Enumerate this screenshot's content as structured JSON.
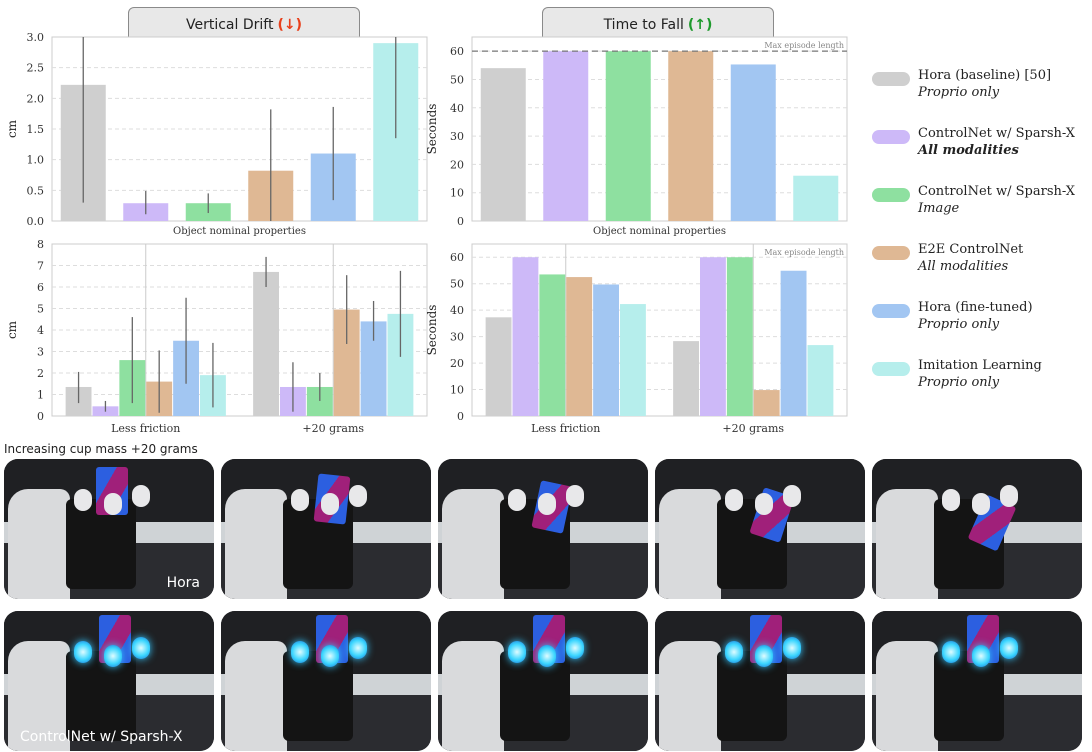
{
  "panels": {
    "vertical_drift": {
      "title": "Vertical Drift",
      "arrow": "(↓)"
    },
    "time_to_fall": {
      "title": "Time to Fall",
      "arrow": "(↑)"
    }
  },
  "legend": {
    "items": [
      {
        "label": "Hora (baseline) [50]",
        "sub": "Proprio only",
        "color": "#cfcfcf",
        "bold": false
      },
      {
        "label": "ControlNet w/ Sparsh-X",
        "sub": "All modalities",
        "color": "#cdb9f8",
        "bold": true
      },
      {
        "label": "ControlNet w/ Sparsh-X",
        "sub": "Image",
        "color": "#8ee0a0",
        "bold": false
      },
      {
        "label": "E2E ControlNet",
        "sub": "All modalities",
        "color": "#dfb894",
        "bold": false
      },
      {
        "label": "Hora (fine-tuned)",
        "sub": "Proprio only",
        "color": "#a2c6f2",
        "bold": false
      },
      {
        "label": "Imitation Learning",
        "sub": "Proprio only",
        "color": "#b6eeec",
        "bold": false
      }
    ]
  },
  "chart_data": [
    {
      "id": "vd_top",
      "type": "bar",
      "title": "Vertical Drift (↓)",
      "xlabel": "Object nominal properties",
      "ylabel": "cm",
      "ylim": [
        0,
        3.0
      ],
      "yticks": [
        "0.0",
        "0.5",
        "1.0",
        "1.5",
        "2.0",
        "2.5",
        "3.0"
      ],
      "grid": true,
      "categories": [
        "Object nominal properties"
      ],
      "series": [
        {
          "name": "Hora (baseline) [50]",
          "values": [
            2.22
          ],
          "err_low": [
            0.3
          ],
          "err_high": [
            3.0
          ]
        },
        {
          "name": "ControlNet w/ Sparsh-X (All modalities)",
          "values": [
            0.29
          ],
          "err_low": [
            0.11
          ],
          "err_high": [
            0.49
          ]
        },
        {
          "name": "ControlNet w/ Sparsh-X (Image)",
          "values": [
            0.29
          ],
          "err_low": [
            0.13
          ],
          "err_high": [
            0.45
          ]
        },
        {
          "name": "E2E ControlNet (All modalities)",
          "values": [
            0.82
          ],
          "err_low": [
            0.0
          ],
          "err_high": [
            1.82
          ]
        },
        {
          "name": "Hora (fine-tuned)",
          "values": [
            1.1
          ],
          "err_low": [
            0.34
          ],
          "err_high": [
            1.86
          ]
        },
        {
          "name": "Imitation Learning",
          "values": [
            2.9
          ],
          "err_low": [
            1.35
          ],
          "err_high": [
            3.0
          ]
        }
      ]
    },
    {
      "id": "ttf_top",
      "type": "bar",
      "title": "Time to Fall (↑)",
      "xlabel": "Object nominal properties",
      "ylabel": "Seconds",
      "ylim": [
        0,
        65
      ],
      "yticks": [
        "0",
        "10",
        "20",
        "30",
        "40",
        "50",
        "60"
      ],
      "grid": true,
      "annotation": "Max episode length",
      "reference_line": 60,
      "categories": [
        "Object nominal properties"
      ],
      "series": [
        {
          "name": "Hora (baseline) [50]",
          "values": [
            54
          ]
        },
        {
          "name": "ControlNet w/ Sparsh-X (All modalities)",
          "values": [
            60
          ]
        },
        {
          "name": "ControlNet w/ Sparsh-X (Image)",
          "values": [
            60
          ]
        },
        {
          "name": "E2E ControlNet (All modalities)",
          "values": [
            60
          ]
        },
        {
          "name": "Hora (fine-tuned)",
          "values": [
            55.3
          ]
        },
        {
          "name": "Imitation Learning",
          "values": [
            16
          ]
        }
      ]
    },
    {
      "id": "vd_bottom",
      "type": "bar",
      "title": "",
      "xlabel": "",
      "ylabel": "cm",
      "ylim": [
        0,
        8
      ],
      "yticks": [
        "0",
        "1",
        "2",
        "3",
        "4",
        "5",
        "6",
        "7",
        "8"
      ],
      "grid": true,
      "categories": [
        "Less friction",
        "+20 grams"
      ],
      "series": [
        {
          "name": "Hora (baseline) [50]",
          "values": [
            1.35,
            6.7
          ],
          "err_low": [
            0.6,
            6.0
          ],
          "err_high": [
            2.05,
            7.4
          ]
        },
        {
          "name": "ControlNet w/ Sparsh-X (All modalities)",
          "values": [
            0.45,
            1.35
          ],
          "err_low": [
            0.2,
            0.2
          ],
          "err_high": [
            0.7,
            2.5
          ]
        },
        {
          "name": "ControlNet w/ Sparsh-X (Image)",
          "values": [
            2.6,
            1.35
          ],
          "err_low": [
            0.6,
            0.7
          ],
          "err_high": [
            4.6,
            2.0
          ]
        },
        {
          "name": "E2E ControlNet (All modalities)",
          "values": [
            1.6,
            4.95
          ],
          "err_low": [
            0.15,
            3.35
          ],
          "err_high": [
            3.05,
            6.55
          ]
        },
        {
          "name": "Hora (fine-tuned)",
          "values": [
            3.5,
            4.4
          ],
          "err_low": [
            1.5,
            3.5
          ],
          "err_high": [
            5.5,
            5.35
          ]
        },
        {
          "name": "Imitation Learning",
          "values": [
            1.9,
            4.75
          ],
          "err_low": [
            0.4,
            2.75
          ],
          "err_high": [
            3.4,
            6.75
          ]
        }
      ]
    },
    {
      "id": "ttf_bottom",
      "type": "bar",
      "title": "",
      "xlabel": "",
      "ylabel": "Seconds",
      "ylim": [
        0,
        65
      ],
      "yticks": [
        "0",
        "10",
        "20",
        "30",
        "40",
        "50",
        "60"
      ],
      "grid": true,
      "annotation": "Max episode length",
      "categories": [
        "Less friction",
        "+20 grams"
      ],
      "series": [
        {
          "name": "Hora (baseline) [50]",
          "values": [
            37.3,
            28.3
          ]
        },
        {
          "name": "ControlNet w/ Sparsh-X (All modalities)",
          "values": [
            60,
            60
          ]
        },
        {
          "name": "ControlNet w/ Sparsh-X (Image)",
          "values": [
            53.5,
            60
          ]
        },
        {
          "name": "E2E ControlNet (All modalities)",
          "values": [
            52.5,
            9.8
          ]
        },
        {
          "name": "Hora (fine-tuned)",
          "values": [
            49.7,
            54.9
          ]
        },
        {
          "name": "Imitation Learning",
          "values": [
            42.3,
            26.8
          ]
        }
      ]
    }
  ],
  "photo_strip": {
    "caption": "Increasing cup mass +20 grams",
    "rows": [
      {
        "label": "Hora",
        "frames": 5
      },
      {
        "label": "ControlNet w/ Sparsh-X",
        "frames": 5
      }
    ]
  }
}
